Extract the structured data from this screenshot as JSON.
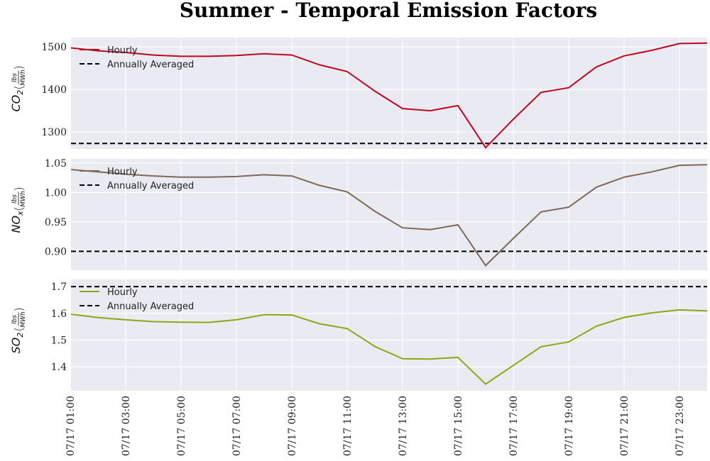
{
  "chart_data": {
    "title": "Summer - Temporal Emission Factors",
    "type": "line",
    "x": [
      "07/17  01:00",
      "07/17  02:00",
      "07/17  03:00",
      "07/17  04:00",
      "07/17  05:00",
      "07/17  06:00",
      "07/17  07:00",
      "07/17  08:00",
      "07/17  09:00",
      "07/17  10:00",
      "07/17  11:00",
      "07/17  12:00",
      "07/17  13:00",
      "07/17  14:00",
      "07/17  15:00",
      "07/17  16:00",
      "07/17  17:00",
      "07/17  18:00",
      "07/17  19:00",
      "07/17  20:00",
      "07/17  21:00",
      "07/17  22:00",
      "07/17  23:00",
      "07/18  00:00"
    ],
    "xticks": [
      "07/17  01:00",
      "07/17  03:00",
      "07/17  05:00",
      "07/17  07:00",
      "07/17  09:00",
      "07/17  11:00",
      "07/17  13:00",
      "07/17  15:00",
      "07/17  17:00",
      "07/17  19:00",
      "07/17  21:00",
      "07/17  23:00"
    ],
    "legend_placement": "upper-left",
    "grid": true,
    "panels": [
      {
        "name": "co2",
        "ylabel_main": "CO",
        "ylabel_sub": "2",
        "ylabel_unit_num": "lbs",
        "ylabel_unit_den": "MWh",
        "ylim": [
          1260,
          1522
        ],
        "yticks": [
          1300,
          1400,
          1500
        ],
        "ytick_labels": [
          "1300",
          "1400",
          "1500"
        ],
        "color": "#c0071f",
        "series": [
          {
            "name": "Hourly",
            "values": [
              1498,
              1491,
              1487,
              1481,
              1478,
              1478,
              1480,
              1484,
              1481,
              1458,
              1442,
              1396,
              1355,
              1350,
              1362,
              1263,
              1330,
              1393,
              1404,
              1453,
              1479,
              1492,
              1508,
              1509
            ]
          },
          {
            "name": "Annually Averaged",
            "value": 1273
          }
        ]
      },
      {
        "name": "nox",
        "ylabel_main": "NO",
        "ylabel_sub": "x",
        "ylabel_unit_num": "lbs",
        "ylabel_unit_den": "MWh",
        "ylim": [
          0.868,
          1.057
        ],
        "yticks": [
          0.9,
          0.95,
          1.0,
          1.05
        ],
        "ytick_labels": [
          "0.90",
          "0.95",
          "1.00",
          "1.05"
        ],
        "color": "#7b6a55",
        "series": [
          {
            "name": "Hourly",
            "values": [
              1.039,
              1.035,
              1.031,
              1.028,
              1.026,
              1.026,
              1.027,
              1.03,
              1.028,
              1.012,
              1.001,
              0.968,
              0.94,
              0.937,
              0.945,
              0.876,
              0.922,
              0.967,
              0.975,
              1.009,
              1.026,
              1.035,
              1.046,
              1.047
            ]
          },
          {
            "name": "Annually Averaged",
            "value": 0.9
          }
        ]
      },
      {
        "name": "so2",
        "ylabel_main": "SO",
        "ylabel_sub": "2",
        "ylabel_unit_num": "lbs",
        "ylabel_unit_den": "MWh",
        "ylim": [
          1.31,
          1.727
        ],
        "yticks": [
          1.4,
          1.5,
          1.6,
          1.7
        ],
        "ytick_labels": [
          "1.4",
          "1.5",
          "1.6",
          "1.7"
        ],
        "color": "#8aa814",
        "series": [
          {
            "name": "Hourly",
            "values": [
              1.597,
              1.584,
              1.576,
              1.569,
              1.567,
              1.566,
              1.576,
              1.595,
              1.594,
              1.561,
              1.543,
              1.476,
              1.43,
              1.429,
              1.435,
              1.335,
              1.405,
              1.475,
              1.493,
              1.552,
              1.585,
              1.602,
              1.613,
              1.609
            ]
          },
          {
            "name": "Annually Averaged",
            "value": 1.7
          }
        ]
      }
    ]
  }
}
